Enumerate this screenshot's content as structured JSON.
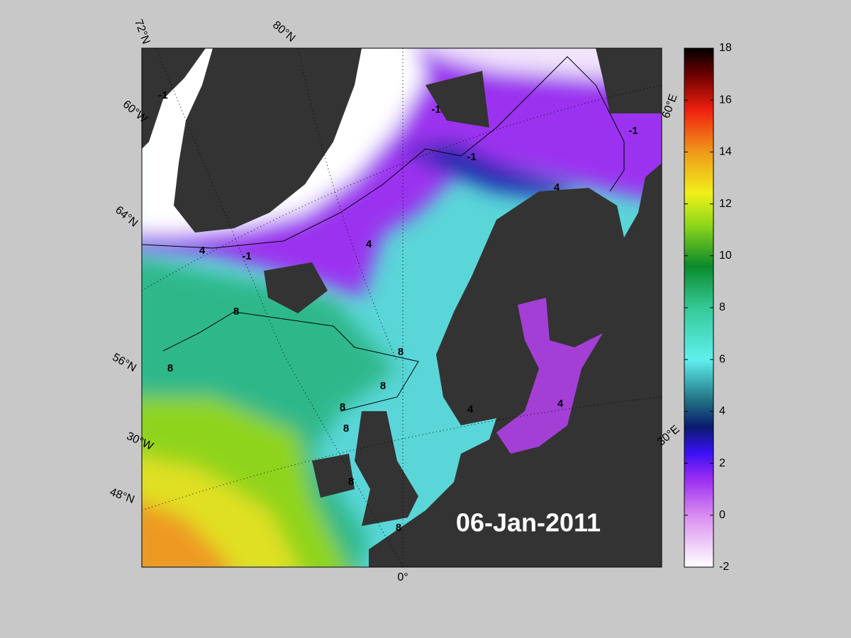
{
  "map": {
    "date_label": "06-Jan-2011",
    "graticule_labels": [
      "72°N",
      "80°N",
      "60°W",
      "64°N",
      "56°N",
      "30°W",
      "48°N",
      "0°",
      "60°E",
      "30°E"
    ],
    "contour_labels": [
      "-1",
      "-1",
      "-1",
      "-1",
      "-1",
      "4",
      "4",
      "4",
      "4",
      "4",
      "8",
      "8",
      "8",
      "8",
      "8",
      "8",
      "8",
      "8"
    ]
  },
  "colorbar": {
    "lim": [
      -2,
      18
    ],
    "ticks": [
      -2,
      0,
      2,
      4,
      6,
      8,
      10,
      12,
      14,
      16,
      18
    ]
  }
}
